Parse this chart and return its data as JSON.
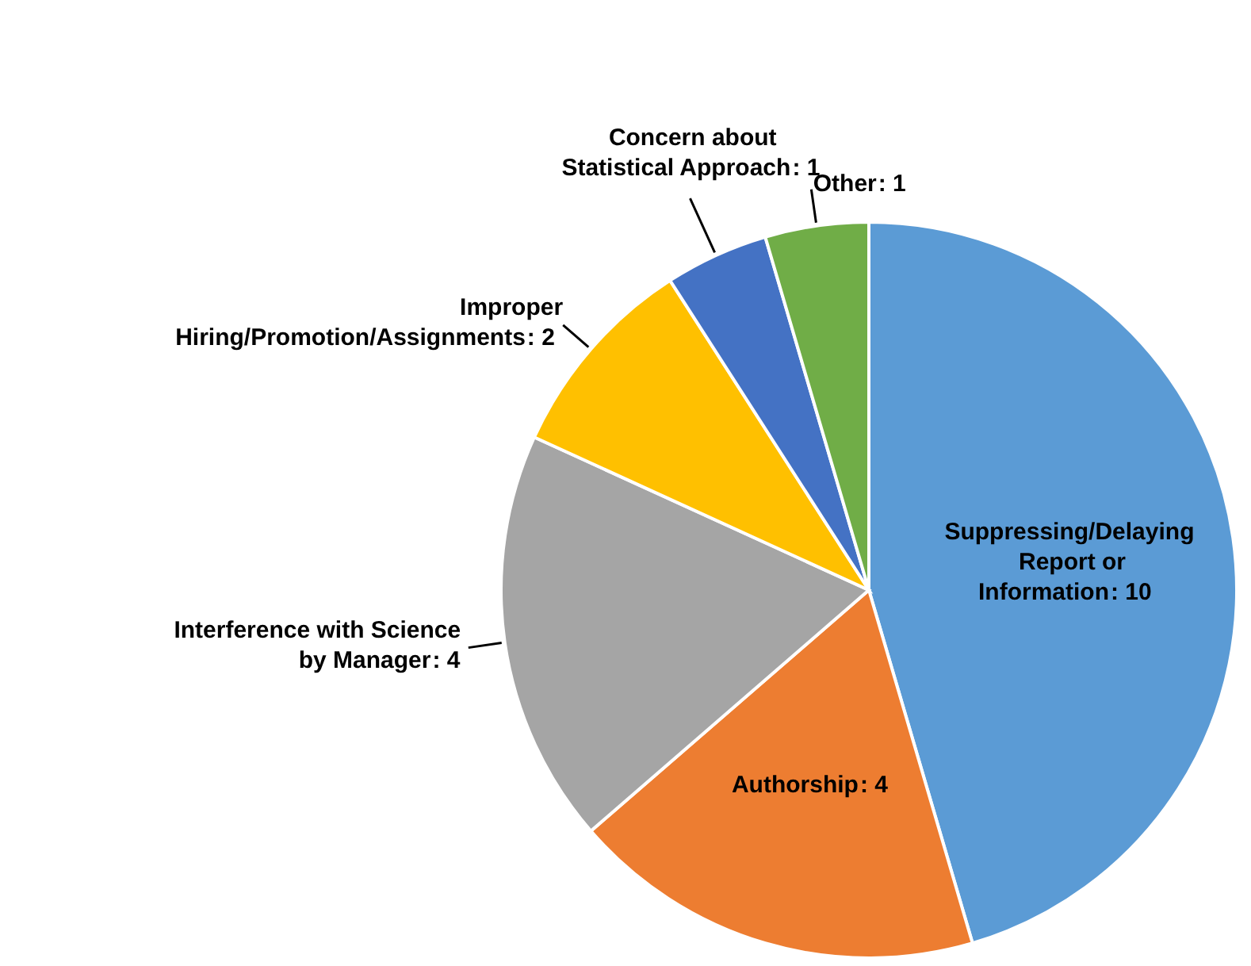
{
  "chart_data": {
    "type": "pie",
    "categories": [
      "Suppressing/Delaying Report or Information",
      "Authorship",
      "Interference with Science by Manager",
      "Improper Hiring/Promotion/Assignments",
      "Concern about Statistical Approach",
      "Other"
    ],
    "values": [
      10,
      4,
      4,
      2,
      1,
      1
    ],
    "colors": [
      "#5b9bd5",
      "#ed7d31",
      "#a5a5a5",
      "#ffc000",
      "#4472c4",
      "#70ad47"
    ],
    "value_labels": [
      ": 10",
      ": 4",
      ": 4",
      ": 2",
      ": 1",
      ": 1"
    ]
  }
}
